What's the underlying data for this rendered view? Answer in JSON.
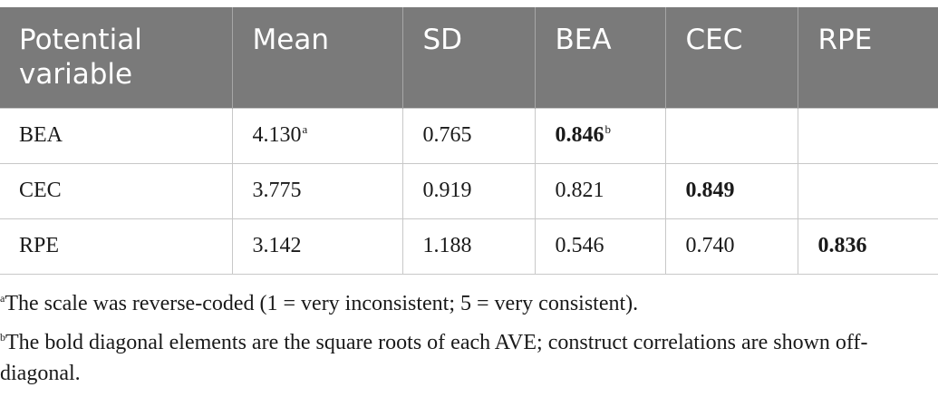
{
  "table": {
    "headers": [
      "Potential variable",
      "Mean",
      "SD",
      "BEA",
      "CEC",
      "RPE"
    ],
    "rows": [
      {
        "variable": "BEA",
        "mean": "4.130",
        "mean_sup": "a",
        "sd": "0.765",
        "bea": "0.846",
        "bea_sup": "b",
        "cec": "",
        "rpe": ""
      },
      {
        "variable": "CEC",
        "mean": "3.775",
        "sd": "0.919",
        "bea": "0.821",
        "cec": "0.849",
        "rpe": ""
      },
      {
        "variable": "RPE",
        "mean": "3.142",
        "sd": "1.188",
        "bea": "0.546",
        "cec": "0.740",
        "rpe": "0.836"
      }
    ]
  },
  "notes": [
    {
      "marker": "a",
      "text": "The scale was reverse-coded (1 = very inconsistent; 5 = very consistent)."
    },
    {
      "marker": "b",
      "text": "The bold diagonal elements are the square roots of each AVE; construct correlations are shown off-diagonal."
    }
  ]
}
